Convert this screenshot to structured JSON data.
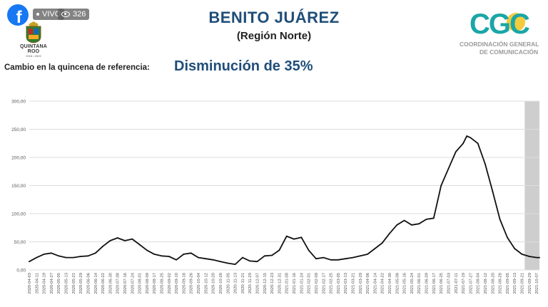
{
  "social": {
    "brand_glyph": "f",
    "live_label": "VIVO",
    "view_count": "326"
  },
  "seal": {
    "name": "QUINTANA ROO",
    "years": "2016 • 2022"
  },
  "cgc": {
    "letters": "CGC",
    "line1": "COORDINACIÓN GENERAL",
    "line2": "DE COMUNICACIÓN"
  },
  "header": {
    "title": "BENITO JUÁREZ",
    "subtitle": "(Región Norte)",
    "reference_label": "Cambio en la quincena de referencia:",
    "reference_value": "Disminución de 35%"
  },
  "colors": {
    "line": "#111111",
    "grid": "#dddddd",
    "title_blue": "#1f4e79",
    "shade": "#bdbdbd"
  },
  "chart_data": {
    "type": "line",
    "ylim": [
      0,
      300
    ],
    "y_ticks": [
      "0,00",
      "50,00",
      "100,00",
      "150,00",
      "200,00",
      "250,00",
      "300,00"
    ],
    "y_tick_values": [
      0,
      50,
      100,
      150,
      200,
      250,
      300
    ],
    "grid": true,
    "x_tick_labels": [
      "2020-04-03",
      "2020-04-11",
      "2020-04-19",
      "2020-04-27",
      "2020-05-05",
      "2020-05-13",
      "2020-05-21",
      "2020-05-29",
      "2020-06-06",
      "2020-06-14",
      "2020-06-22",
      "2020-06-30",
      "2020-07-08",
      "2020-07-16",
      "2020-07-24",
      "2020-08-01",
      "2020-08-09",
      "2020-08-17",
      "2020-08-25",
      "2020-09-02",
      "2020-09-10",
      "2020-09-18",
      "2020-09-26",
      "2020-10-04",
      "2020-10-12",
      "2020-10-20",
      "2020-10-28",
      "2020-11-05",
      "2020-11-13",
      "2020-11-21",
      "2020-11-29",
      "2020-12-07",
      "2020-12-15",
      "2020-12-23",
      "2020-12-31",
      "2021-01-08",
      "2021-01-16",
      "2021-01-24",
      "2021-02-01",
      "2021-02-09",
      "2021-02-17",
      "2021-02-25",
      "2021-03-05",
      "2021-03-13",
      "2021-03-21",
      "2021-03-29",
      "2021-04-06",
      "2021-04-14",
      "2021-04-22",
      "2021-04-30",
      "2021-05-08",
      "2021-05-16",
      "2021-05-24",
      "2021-06-01",
      "2021-06-09",
      "2021-06-17",
      "2021-06-25",
      "2021-07-03",
      "2021-07-11",
      "2021-07-19",
      "2021-07-27",
      "2021-08-04",
      "2021-08-12",
      "2021-08-20",
      "2021-08-28",
      "2021-09-05",
      "2021-09-13",
      "2021-09-21",
      "2021-09-29",
      "2021-10-07"
    ],
    "shaded_from": "2021-09-24",
    "shaded_to": "2021-10-10",
    "x": [
      "2020-04-03",
      "2020-04-11",
      "2020-04-19",
      "2020-04-27",
      "2020-05-05",
      "2020-05-13",
      "2020-05-21",
      "2020-05-29",
      "2020-06-06",
      "2020-06-14",
      "2020-06-22",
      "2020-06-30",
      "2020-07-08",
      "2020-07-16",
      "2020-07-24",
      "2020-08-01",
      "2020-08-09",
      "2020-08-17",
      "2020-08-25",
      "2020-09-02",
      "2020-09-10",
      "2020-09-18",
      "2020-09-26",
      "2020-10-04",
      "2020-10-12",
      "2020-10-20",
      "2020-10-28",
      "2020-11-05",
      "2020-11-13",
      "2020-11-21",
      "2020-11-29",
      "2020-12-07",
      "2020-12-15",
      "2020-12-23",
      "2020-12-31",
      "2021-01-08",
      "2021-01-16",
      "2021-01-24",
      "2021-02-01",
      "2021-02-09",
      "2021-02-17",
      "2021-02-25",
      "2021-03-05",
      "2021-03-13",
      "2021-03-21",
      "2021-03-29",
      "2021-04-06",
      "2021-04-14",
      "2021-04-22",
      "2021-04-30",
      "2021-05-08",
      "2021-05-16",
      "2021-05-24",
      "2021-06-01",
      "2021-06-09",
      "2021-06-17",
      "2021-06-25",
      "2021-07-03",
      "2021-07-11",
      "2021-07-19",
      "2021-07-23",
      "2021-07-27",
      "2021-08-04",
      "2021-08-12",
      "2021-08-20",
      "2021-08-28",
      "2021-09-05",
      "2021-09-13",
      "2021-09-21",
      "2021-09-29",
      "2021-10-07",
      "2021-10-10"
    ],
    "y": [
      15,
      22,
      28,
      30,
      25,
      22,
      22,
      24,
      25,
      30,
      42,
      52,
      57,
      52,
      55,
      45,
      35,
      28,
      25,
      24,
      18,
      28,
      30,
      22,
      20,
      18,
      15,
      12,
      10,
      22,
      16,
      15,
      25,
      26,
      35,
      60,
      55,
      58,
      35,
      20,
      22,
      18,
      18,
      20,
      22,
      25,
      28,
      38,
      48,
      65,
      80,
      88,
      80,
      82,
      90,
      92,
      150,
      180,
      210,
      225,
      238,
      235,
      225,
      188,
      140,
      90,
      58,
      38,
      28,
      24,
      22,
      22
    ]
  }
}
